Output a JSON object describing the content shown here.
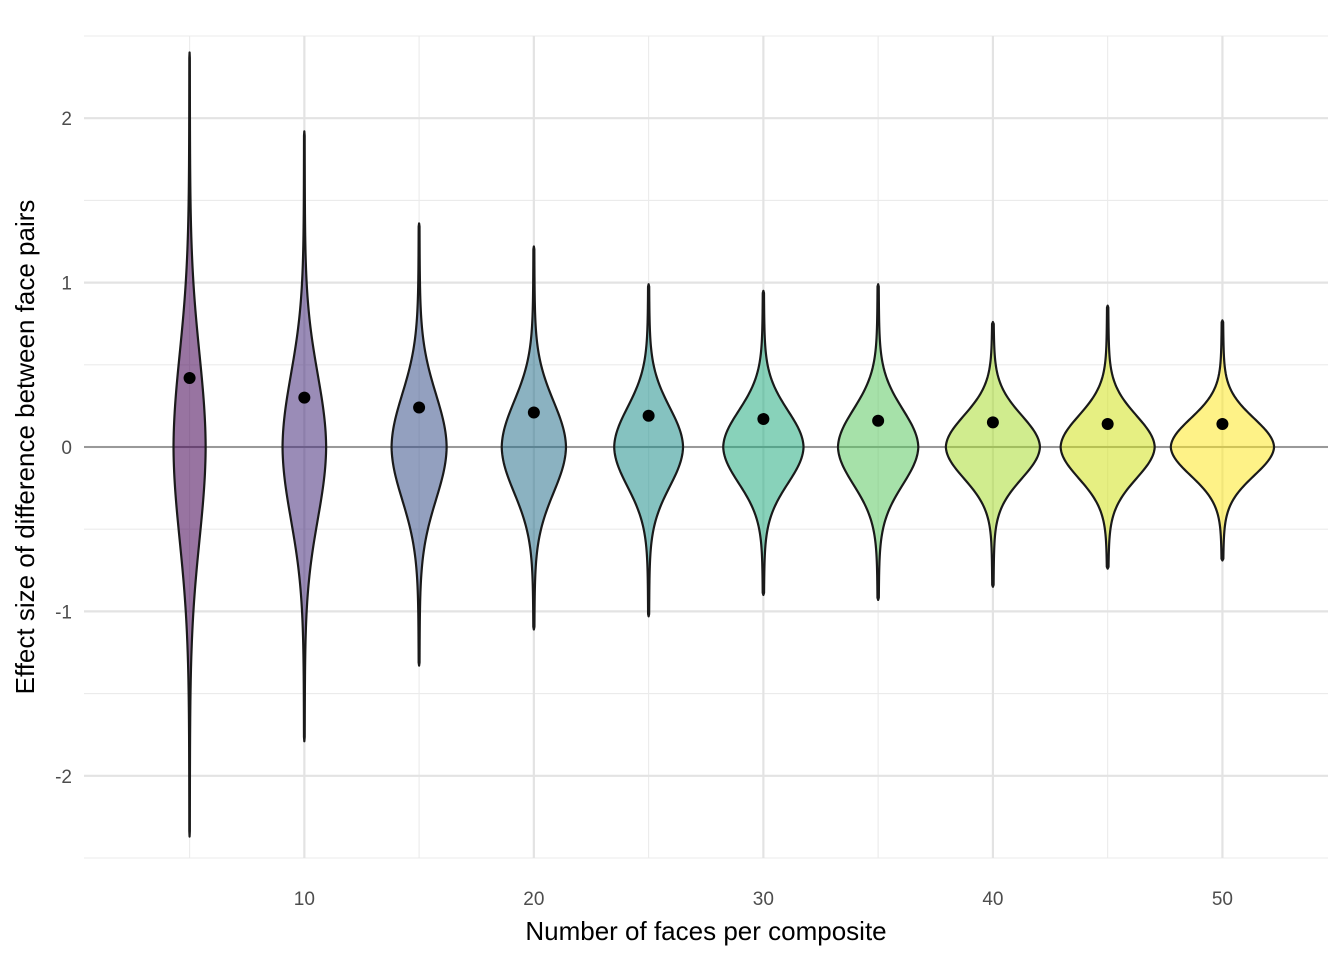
{
  "chart_data": {
    "type": "violin",
    "title": "",
    "xlabel": "Number of faces per composite",
    "ylabel": "Effect size of difference between face pairs",
    "xlim": [
      0.4,
      54.6
    ],
    "ylim": [
      -2.5,
      2.5
    ],
    "x_ticks": [
      10,
      20,
      30,
      40,
      50
    ],
    "x_minor_ticks": [
      5,
      15,
      25,
      35,
      45
    ],
    "y_ticks": [
      -2,
      -1,
      0,
      1,
      2
    ],
    "y_minor_ticks": [
      -2.5,
      -1.5,
      -0.5,
      0.5,
      1.5,
      2.5
    ],
    "grid": true,
    "reference_line": {
      "y": 0,
      "color": "#999999"
    },
    "series": [
      {
        "x": 5,
        "mean": 0.42,
        "min": -2.37,
        "max": 2.4,
        "half_width_max": 0.7,
        "color": "#440154"
      },
      {
        "x": 10,
        "mean": 0.3,
        "min": -1.79,
        "max": 1.92,
        "half_width_max": 0.95,
        "color": "#472D7B"
      },
      {
        "x": 15,
        "mean": 0.24,
        "min": -1.33,
        "max": 1.36,
        "half_width_max": 1.2,
        "color": "#3B528B"
      },
      {
        "x": 20,
        "mean": 0.21,
        "min": -1.11,
        "max": 1.22,
        "half_width_max": 1.4,
        "color": "#2C728E"
      },
      {
        "x": 25,
        "mean": 0.19,
        "min": -1.03,
        "max": 0.99,
        "half_width_max": 1.5,
        "color": "#21908C"
      },
      {
        "x": 30,
        "mean": 0.17,
        "min": -0.9,
        "max": 0.95,
        "half_width_max": 1.75,
        "color": "#27AD81"
      },
      {
        "x": 35,
        "mean": 0.16,
        "min": -0.93,
        "max": 0.99,
        "half_width_max": 1.75,
        "color": "#5DC863"
      },
      {
        "x": 40,
        "mean": 0.15,
        "min": -0.85,
        "max": 0.76,
        "half_width_max": 2.05,
        "color": "#AADC32"
      },
      {
        "x": 45,
        "mean": 0.14,
        "min": -0.74,
        "max": 0.86,
        "half_width_max": 2.05,
        "color": "#D2E21B"
      },
      {
        "x": 50,
        "mean": 0.14,
        "min": -0.69,
        "max": 0.77,
        "half_width_max": 2.25,
        "color": "#FDE725"
      }
    ]
  }
}
